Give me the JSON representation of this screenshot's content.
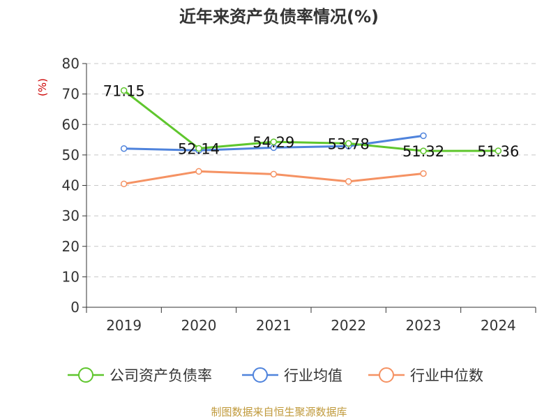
{
  "chart_data": {
    "type": "line",
    "title": "近年来资产负债率情况(%)",
    "ylabel": "(%)",
    "xlabel": "",
    "categories": [
      "2019",
      "2020",
      "2021",
      "2022",
      "2023",
      "2024"
    ],
    "ylim": [
      0,
      80
    ],
    "yticks": [
      "0",
      "10",
      "20",
      "30",
      "40",
      "50",
      "60",
      "70",
      "80"
    ],
    "grid": true,
    "legend_position": "bottom",
    "series": [
      {
        "name": "公司资产负债率",
        "color": "#5fc62d",
        "values": [
          71.15,
          52.14,
          54.29,
          53.78,
          51.32,
          51.36
        ],
        "labels": [
          "71.15",
          "52.14",
          "54.29",
          "53.78",
          "51.32",
          "51.36"
        ]
      },
      {
        "name": "行业均值",
        "color": "#4f83dc",
        "values": [
          52.1,
          51.5,
          52.4,
          52.9,
          56.3,
          null
        ]
      },
      {
        "name": "行业中位数",
        "color": "#f59263",
        "values": [
          40.5,
          44.6,
          43.7,
          41.3,
          43.9,
          null
        ]
      }
    ]
  },
  "footer": {
    "source": "制图数据来自恒生聚源数据库"
  }
}
